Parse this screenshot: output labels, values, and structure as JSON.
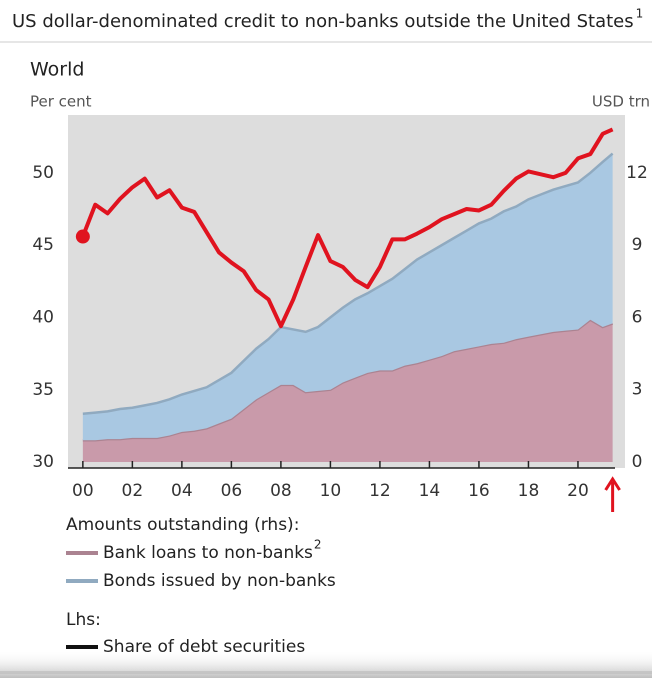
{
  "chart_data": {
    "type": "stacked-area-line",
    "title": "US dollar-denominated credit to non-banks outside the United States",
    "title_note": "1",
    "subtitle": "World",
    "y_label": "Per cent",
    "y2_label": "USD trn",
    "legend_heading": "Amounts outstanding (rhs):",
    "legend_heading_2": "Lhs:",
    "series_notes": [
      "2",
      null,
      null
    ],
    "stacked": true,
    "x": [
      2000,
      2000.5,
      2001,
      2001.5,
      2002,
      2002.5,
      2003,
      2003.5,
      2004,
      2004.5,
      2005,
      2005.5,
      2006,
      2006.5,
      2007,
      2007.5,
      2008,
      2008.5,
      2009,
      2009.5,
      2010,
      2010.5,
      2011,
      2011.5,
      2012,
      2012.5,
      2013,
      2013.5,
      2014,
      2014.5,
      2015,
      2015.5,
      2016,
      2016.5,
      2017,
      2017.5,
      2018,
      2018.5,
      2019,
      2019.5,
      2020,
      2020.5,
      2021,
      2021.4
    ],
    "xlim": [
      1999.4,
      2021.9
    ],
    "xticks": [
      {
        "value": 2000,
        "label": "00"
      },
      {
        "value": 2002,
        "label": "02"
      },
      {
        "value": 2004,
        "label": "04"
      },
      {
        "value": 2006,
        "label": "06"
      },
      {
        "value": 2008,
        "label": "08"
      },
      {
        "value": 2010,
        "label": "10"
      },
      {
        "value": 2012,
        "label": "12"
      },
      {
        "value": 2014,
        "label": "14"
      },
      {
        "value": 2016,
        "label": "16"
      },
      {
        "value": 2018,
        "label": "18"
      },
      {
        "value": 2020,
        "label": "20"
      }
    ],
    "ylim": [
      29.6,
      54
    ],
    "yticks": [
      30,
      35,
      40,
      45,
      50
    ],
    "y2lim": [
      -0.25,
      14.4
    ],
    "y2ticks": [
      0,
      3,
      6,
      9,
      12
    ],
    "series": [
      {
        "name": "Bank loans to non-banks",
        "color": "#c99aaa",
        "axis": "y2",
        "values": [
          0.9,
          0.9,
          0.95,
          0.95,
          1.0,
          1.0,
          1.0,
          1.1,
          1.25,
          1.3,
          1.4,
          1.6,
          1.8,
          2.2,
          2.6,
          2.9,
          3.2,
          3.2,
          2.9,
          2.95,
          3.0,
          3.3,
          3.5,
          3.7,
          3.8,
          3.8,
          4.0,
          4.1,
          4.25,
          4.4,
          4.6,
          4.7,
          4.8,
          4.9,
          4.95,
          5.1,
          5.2,
          5.3,
          5.4,
          5.45,
          5.5,
          5.9,
          5.6,
          5.75
        ]
      },
      {
        "name": "Bonds issued by non-banks",
        "color": "#a9c8e2",
        "axis": "y2",
        "values": [
          1.1,
          1.15,
          1.15,
          1.25,
          1.25,
          1.35,
          1.45,
          1.5,
          1.55,
          1.65,
          1.7,
          1.8,
          1.9,
          2.0,
          2.1,
          2.2,
          2.4,
          2.3,
          2.5,
          2.65,
          3.0,
          3.1,
          3.25,
          3.3,
          3.5,
          3.8,
          4.0,
          4.3,
          4.45,
          4.6,
          4.7,
          4.9,
          5.1,
          5.2,
          5.45,
          5.5,
          5.7,
          5.8,
          5.9,
          6.0,
          6.1,
          6.1,
          6.85,
          7.05
        ]
      },
      {
        "name": "Share of debt securities",
        "color": "#e0131f",
        "axis": "y",
        "values": [
          45.6,
          47.8,
          47.2,
          48.2,
          49.0,
          49.6,
          48.3,
          48.8,
          47.6,
          47.3,
          45.9,
          44.5,
          43.8,
          43.2,
          41.9,
          41.25,
          39.4,
          41.25,
          43.5,
          45.7,
          43.9,
          43.5,
          42.6,
          42.1,
          43.5,
          45.4,
          45.4,
          45.8,
          46.25,
          46.8,
          47.15,
          47.5,
          47.4,
          47.8,
          48.75,
          49.6,
          50.1,
          49.9,
          49.7,
          50.0,
          51.0,
          51.3,
          52.7,
          53.0
        ]
      }
    ]
  }
}
